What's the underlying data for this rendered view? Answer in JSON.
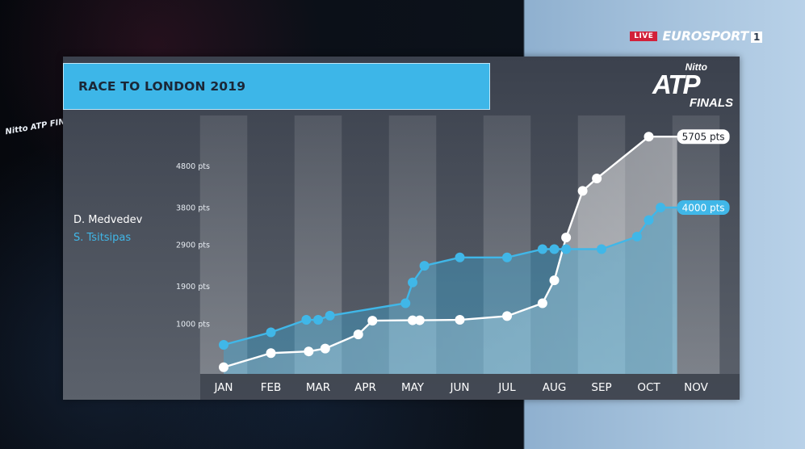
{
  "broadcast": {
    "live": "LIVE",
    "channel": "EUROSPORT",
    "channel_number": "1"
  },
  "side_logo": "Nitto ATP FINALS",
  "logo": {
    "line1": "Nitto",
    "line2": "ATP",
    "line3": "FINALS"
  },
  "title": "RACE TO LONDON 2019",
  "legend": {
    "player1": "D. Medvedev",
    "player2": "S. Tsitsipas"
  },
  "colors": {
    "player1": "#ffffff",
    "player2": "#40b7e8",
    "title_bar": "#3db6e8"
  },
  "chart_data": {
    "type": "area",
    "title": "RACE TO LONDON 2019",
    "categories": [
      "JAN",
      "FEB",
      "MAR",
      "APR",
      "MAY",
      "JUN",
      "JUL",
      "AUG",
      "SEP",
      "OCT",
      "NOV"
    ],
    "yticks": [
      1000,
      1900,
      2900,
      3800,
      4800
    ],
    "ytick_labels": [
      "1000 pts",
      "1900 pts",
      "2900 pts",
      "3800 pts",
      "4800 pts"
    ],
    "ylim": [
      0,
      6000
    ],
    "xlim": [
      0,
      10
    ],
    "grid": true,
    "series": [
      {
        "name": "D. Medvedev",
        "color": "#ffffff",
        "end_label": "5705 pts",
        "x": [
          0,
          1,
          1.8,
          2.15,
          2.85,
          3.15,
          4.0,
          4.15,
          5.0,
          6.0,
          6.75,
          7.0,
          7.25,
          7.6,
          7.9,
          9.0,
          9.6
        ],
        "y": [
          160,
          500,
          540,
          610,
          950,
          1280,
          1290,
          1290,
          1300,
          1390,
          1700,
          2250,
          3280,
          4400,
          4700,
          5705,
          5705
        ]
      },
      {
        "name": "S. Tsitsipas",
        "color": "#40b7e8",
        "end_label": "4000 pts",
        "x": [
          0,
          1,
          1.75,
          2.0,
          2.25,
          3.85,
          4.0,
          4.25,
          5.0,
          6.0,
          6.75,
          7.0,
          7.25,
          8.0,
          8.75,
          9.0,
          9.25,
          9.6
        ],
        "y": [
          700,
          1000,
          1300,
          1300,
          1400,
          1700,
          2200,
          2600,
          2800,
          2800,
          3000,
          3000,
          3000,
          3000,
          3300,
          3700,
          4000,
          4000
        ]
      }
    ]
  }
}
